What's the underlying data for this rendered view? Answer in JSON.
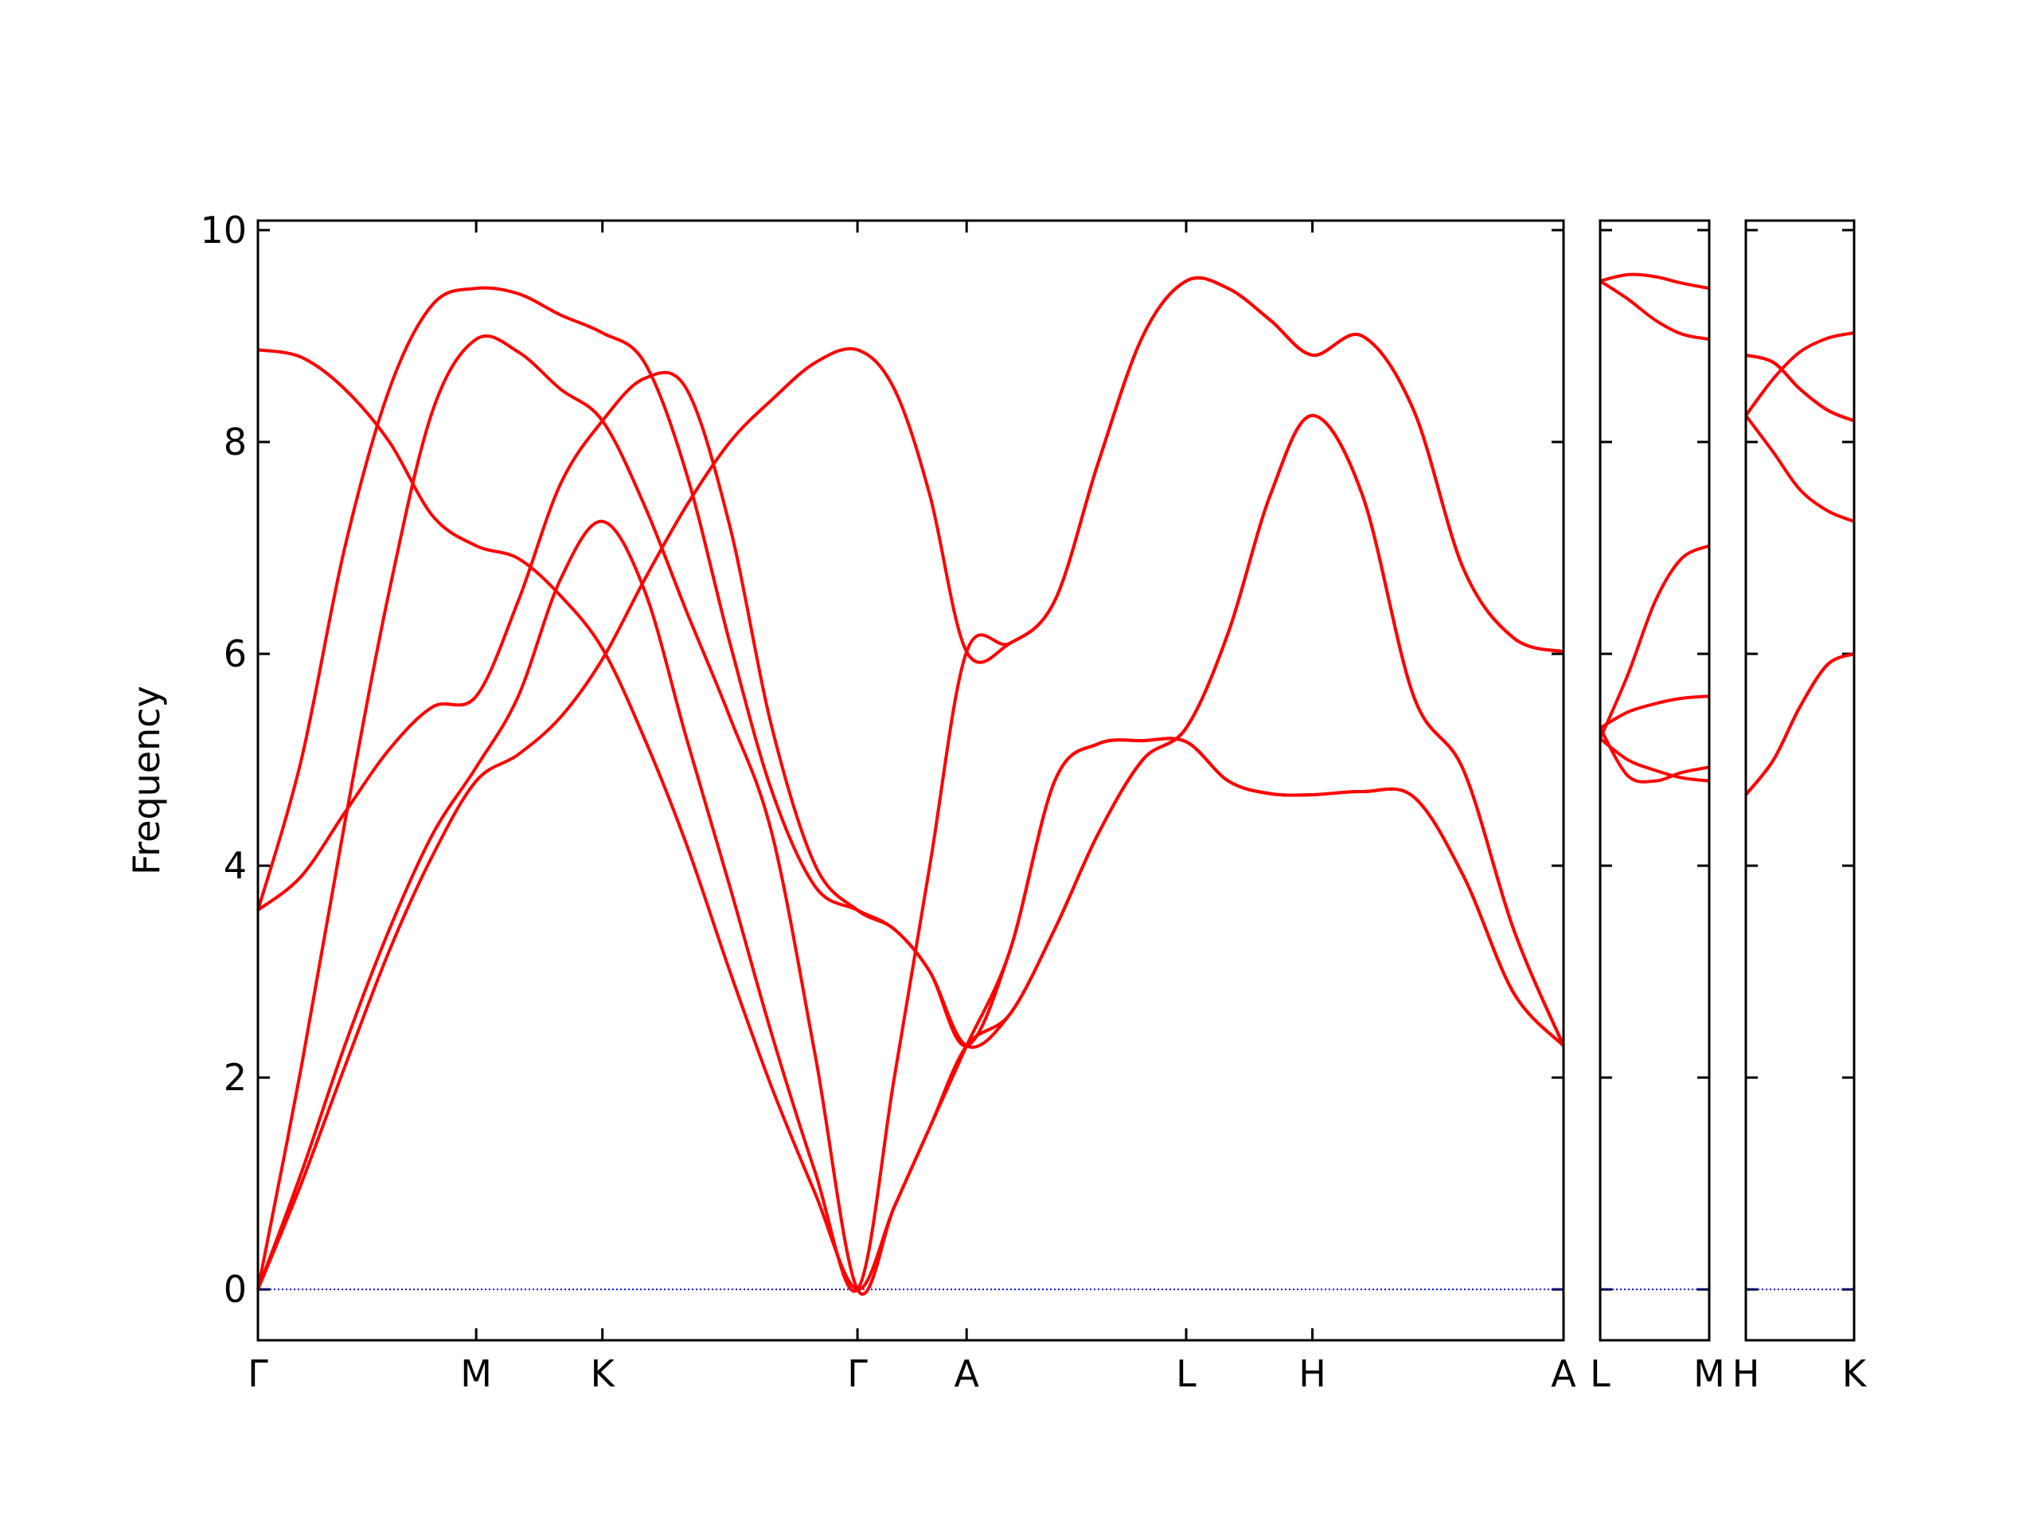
{
  "chart_data": [
    {
      "type": "line",
      "ylabel": "Frequency",
      "x": [
        0,
        0.33,
        0.66,
        1.0,
        1.33,
        1.66,
        1.98,
        2.3,
        2.62,
        2.94,
        3.26,
        3.59,
        3.91,
        4.24,
        4.56,
        4.84,
        5.11,
        5.39,
        5.72,
        6.06,
        6.39,
        6.73,
        7.06,
        7.38,
        7.7,
        8.02,
        8.4,
        8.79,
        9.17,
        9.55,
        9.93
      ],
      "series": [
        {
          "color": "#ff0000",
          "values": [
            0,
            1.0,
            2.1,
            3.2,
            4.1,
            4.8,
            5.05,
            5.4,
            5.95,
            6.7,
            7.4,
            8.0,
            8.4,
            8.75,
            8.87,
            8.5,
            7.5,
            6.02,
            6.1,
            6.5,
            7.8,
            9.0,
            9.52,
            9.45,
            9.15,
            8.82,
            9.0,
            8.3,
            6.8,
            6.15,
            6.02
          ]
        },
        {
          "color": "#ff0000",
          "values": [
            0,
            1.1,
            2.3,
            3.4,
            4.3,
            4.93,
            5.6,
            6.7,
            7.25,
            6.6,
            5.2,
            3.8,
            2.4,
            1.1,
            0,
            2.0,
            4.0,
            6.02,
            6.1,
            6.5,
            7.8,
            9.0,
            9.52,
            9.45,
            9.15,
            8.82,
            9.0,
            8.3,
            6.8,
            6.15,
            6.02
          ]
        },
        {
          "color": "#ff0000",
          "values": [
            0,
            2.1,
            4.4,
            6.6,
            8.3,
            8.97,
            8.85,
            8.5,
            8.2,
            7.4,
            6.4,
            5.4,
            4.3,
            2.2,
            0,
            0.78,
            1.53,
            2.3,
            3.2,
            4.8,
            5.15,
            5.18,
            5.17,
            4.8,
            4.68,
            4.67,
            4.7,
            4.65,
            3.9,
            2.8,
            2.3
          ]
        },
        {
          "color": "#ff0000",
          "values": [
            8.87,
            8.8,
            8.5,
            8.0,
            7.3,
            7.02,
            6.9,
            6.55,
            6.05,
            5.2,
            4.2,
            3.0,
            1.9,
            0.9,
            0,
            0.78,
            1.53,
            2.3,
            2.6,
            3.4,
            4.3,
            5.0,
            5.3,
            6.2,
            7.5,
            8.25,
            7.5,
            5.6,
            4.9,
            3.4,
            2.3
          ]
        },
        {
          "color": "#ff0000",
          "values": [
            3.58,
            3.9,
            4.5,
            5.1,
            5.5,
            5.6,
            6.5,
            7.6,
            8.2,
            8.6,
            8.5,
            7.2,
            5.3,
            4.0,
            3.58,
            3.4,
            3.0,
            2.3,
            3.2,
            4.8,
            5.15,
            5.18,
            5.17,
            4.8,
            4.68,
            4.67,
            4.7,
            4.65,
            3.9,
            2.8,
            2.3
          ]
        },
        {
          "color": "#ff0000",
          "values": [
            3.58,
            5.0,
            7.0,
            8.5,
            9.3,
            9.45,
            9.4,
            9.2,
            9.03,
            8.75,
            7.7,
            6.1,
            4.7,
            3.8,
            3.58,
            3.4,
            3.0,
            2.3,
            2.6,
            3.4,
            4.3,
            5.0,
            5.3,
            6.2,
            7.5,
            8.25,
            7.5,
            5.6,
            4.9,
            3.4,
            2.3
          ]
        }
      ],
      "xlim": [
        0,
        9.93
      ],
      "xticks": [
        {
          "value": 0,
          "label": "Γ"
        },
        {
          "value": 1.66,
          "label": "M"
        },
        {
          "value": 2.62,
          "label": "K"
        },
        {
          "value": 4.56,
          "label": "Γ"
        },
        {
          "value": 5.39,
          "label": "A"
        },
        {
          "value": 7.06,
          "label": "L"
        },
        {
          "value": 8.02,
          "label": "H"
        },
        {
          "value": 9.93,
          "label": "A"
        }
      ],
      "ylim": [
        -0.48,
        10.09
      ],
      "yticks": [
        0,
        2,
        4,
        6,
        8,
        10
      ],
      "show_ytick_labels": true,
      "hline": 0,
      "hline_color": "#0000ff"
    },
    {
      "type": "line",
      "x": [
        0,
        0.21,
        0.42,
        0.62,
        0.83
      ],
      "series": [
        {
          "color": "#ff0000",
          "values": [
            9.52,
            9.58,
            9.56,
            9.5,
            9.45
          ]
        },
        {
          "color": "#ff0000",
          "values": [
            9.52,
            9.35,
            9.15,
            9.02,
            8.97
          ]
        },
        {
          "color": "#ff0000",
          "values": [
            5.2,
            5.8,
            6.5,
            6.9,
            7.02
          ]
        },
        {
          "color": "#ff0000",
          "values": [
            5.3,
            5.45,
            5.53,
            5.58,
            5.6
          ]
        },
        {
          "color": "#ff0000",
          "values": [
            5.3,
            4.85,
            4.8,
            4.88,
            4.93
          ]
        },
        {
          "color": "#ff0000",
          "values": [
            5.2,
            5.0,
            4.9,
            4.83,
            4.8
          ]
        }
      ],
      "xlim": [
        0,
        0.83
      ],
      "xticks": [
        {
          "value": 0,
          "label": "L"
        },
        {
          "value": 0.83,
          "label": "M"
        }
      ],
      "ylim": [
        -0.48,
        10.09
      ],
      "yticks": [
        0,
        2,
        4,
        6,
        8,
        10
      ],
      "show_ytick_labels": false,
      "hline": 0,
      "hline_color": "#0000ff"
    },
    {
      "type": "line",
      "x": [
        0,
        0.21,
        0.41,
        0.62,
        0.82
      ],
      "series": [
        {
          "color": "#ff0000",
          "values": [
            8.82,
            8.75,
            8.5,
            8.3,
            8.2
          ]
        },
        {
          "color": "#ff0000",
          "values": [
            8.82,
            8.75,
            8.5,
            8.3,
            8.2
          ]
        },
        {
          "color": "#ff0000",
          "values": [
            8.25,
            8.6,
            8.85,
            8.98,
            9.03
          ]
        },
        {
          "color": "#ff0000",
          "values": [
            8.25,
            7.9,
            7.55,
            7.35,
            7.25
          ]
        },
        {
          "color": "#ff0000",
          "values": [
            4.67,
            5.0,
            5.5,
            5.9,
            6.0
          ]
        },
        {
          "color": "#ff0000",
          "values": [
            4.67,
            5.0,
            5.5,
            5.9,
            6.0
          ]
        }
      ],
      "xlim": [
        0,
        0.82
      ],
      "xticks": [
        {
          "value": 0,
          "label": "H"
        },
        {
          "value": 0.82,
          "label": "K"
        }
      ],
      "ylim": [
        -0.48,
        10.09
      ],
      "yticks": [
        0,
        2,
        4,
        6,
        8,
        10
      ],
      "show_ytick_labels": false,
      "hline": 0,
      "hline_color": "#0000ff"
    }
  ]
}
